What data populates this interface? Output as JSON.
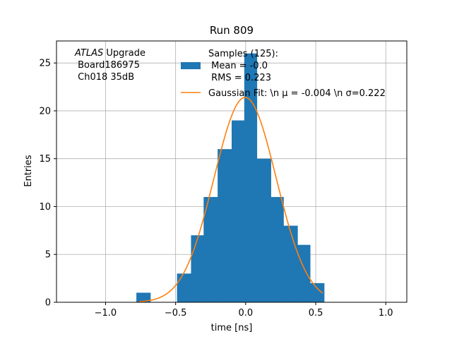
{
  "chart_data": {
    "type": "bar",
    "title": "Run 809",
    "xlabel": "time [ns]",
    "ylabel": "Entries",
    "xlim": [
      -1.35,
      1.15
    ],
    "ylim": [
      0,
      27.3
    ],
    "xticks": [
      -1.0,
      -0.5,
      0.0,
      0.5,
      1.0
    ],
    "xtick_labels": [
      "−1.0",
      "−0.5",
      "0.0",
      "0.5",
      "1.0"
    ],
    "yticks": [
      0,
      5,
      10,
      15,
      20,
      25
    ],
    "ytick_labels": [
      "0",
      "5",
      "10",
      "15",
      "20",
      "25"
    ],
    "grid": true,
    "legend_position": "top-right",
    "annotation": {
      "lines": [
        "ATLAS Upgrade",
        " Board186975",
        " Ch018 35dB"
      ],
      "italic_word": "ATLAS"
    },
    "histogram": {
      "name_lines": [
        "Samples (125):",
        " Mean = -0.0",
        " RMS = 0.223"
      ],
      "color": "#1f77b4",
      "bins": [
        {
          "x0": -0.78,
          "x1": -0.68,
          "count": 1
        },
        {
          "x0": -0.49,
          "x1": -0.39,
          "count": 3
        },
        {
          "x0": -0.39,
          "x1": -0.3,
          "count": 7
        },
        {
          "x0": -0.3,
          "x1": -0.2,
          "count": 11
        },
        {
          "x0": -0.2,
          "x1": -0.1,
          "count": 16
        },
        {
          "x0": -0.1,
          "x1": -0.01,
          "count": 19
        },
        {
          "x0": -0.01,
          "x1": 0.08,
          "count": 26
        },
        {
          "x0": 0.08,
          "x1": 0.18,
          "count": 15
        },
        {
          "x0": 0.18,
          "x1": 0.27,
          "count": 11
        },
        {
          "x0": 0.27,
          "x1": 0.37,
          "count": 8
        },
        {
          "x0": 0.37,
          "x1": 0.46,
          "count": 6
        },
        {
          "x0": 0.46,
          "x1": 0.56,
          "count": 2
        }
      ]
    },
    "fit": {
      "name": "Gaussian Fit: \\n μ = -0.004 \\n σ=0.222",
      "color": "#ff7f0e",
      "mu": -0.004,
      "sigma": 0.222,
      "amplitude": 21.4,
      "x_range": [
        -0.76,
        0.55
      ]
    }
  }
}
